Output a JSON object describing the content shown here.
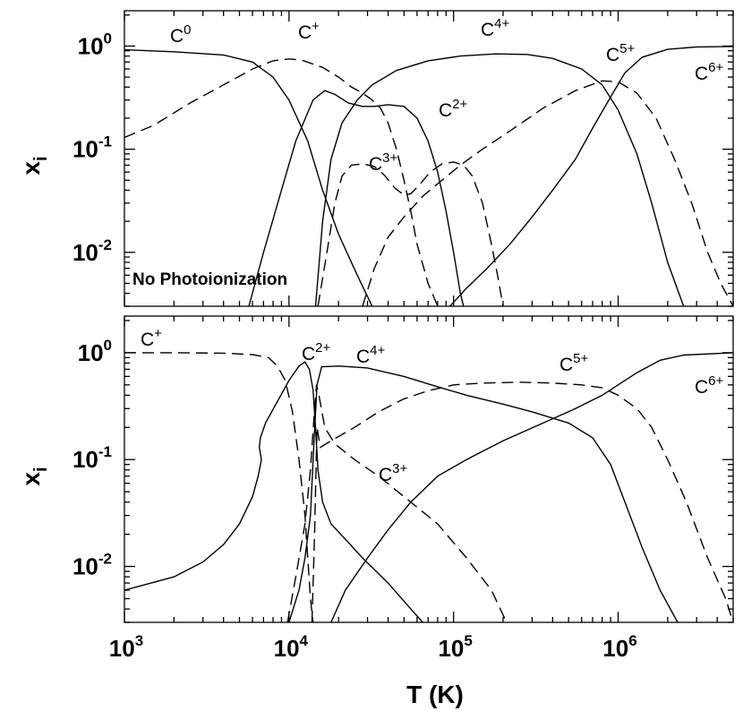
{
  "chart_data": [
    {
      "type": "line",
      "panel": "top",
      "annotation": "No Photoionization",
      "xlabel": "T  (K)",
      "ylabel": "x_i",
      "xscale": "log",
      "yscale": "log",
      "xlim": [
        1000,
        5000000
      ],
      "ylim": [
        0.003,
        2.2
      ],
      "x_ticks": [
        "10^3",
        "10^4",
        "10^5",
        "10^6"
      ],
      "y_ticks": [
        "10^-2",
        "10^-1",
        "10^0"
      ],
      "series": [
        {
          "name": "C0",
          "label_base": "C",
          "label_sup": "0",
          "style": "solid",
          "points": [
            [
              1000,
              0.92
            ],
            [
              2000,
              0.88
            ],
            [
              4000,
              0.82
            ],
            [
              6000,
              0.7
            ],
            [
              8000,
              0.5
            ],
            [
              10000,
              0.3
            ],
            [
              13000,
              0.12
            ],
            [
              16000,
              0.04
            ],
            [
              20000,
              0.015
            ],
            [
              26000,
              0.006
            ],
            [
              32000,
              0.003
            ]
          ]
        },
        {
          "name": "C+",
          "label_base": "C",
          "label_sup": "+",
          "style": "dashed",
          "points": [
            [
              1000,
              0.13
            ],
            [
              1500,
              0.17
            ],
            [
              2500,
              0.28
            ],
            [
              4000,
              0.42
            ],
            [
              6000,
              0.6
            ],
            [
              8000,
              0.72
            ],
            [
              10000,
              0.75
            ],
            [
              12000,
              0.73
            ],
            [
              16000,
              0.62
            ],
            [
              20000,
              0.5
            ],
            [
              24000,
              0.4
            ],
            [
              28000,
              0.35
            ],
            [
              32000,
              0.3
            ],
            [
              36000,
              0.25
            ],
            [
              40000,
              0.18
            ],
            [
              45000,
              0.1
            ],
            [
              50000,
              0.05
            ],
            [
              55000,
              0.025
            ],
            [
              60000,
              0.012
            ],
            [
              70000,
              0.005
            ],
            [
              80000,
              0.003
            ]
          ]
        },
        {
          "name": "C2+",
          "label_base": "C",
          "label_sup": "2+",
          "style": "solid",
          "points": [
            [
              5700,
              0.003
            ],
            [
              7000,
              0.01
            ],
            [
              9000,
              0.04
            ],
            [
              11000,
              0.12
            ],
            [
              14000,
              0.3
            ],
            [
              16500,
              0.37
            ],
            [
              19000,
              0.34
            ],
            [
              23000,
              0.28
            ],
            [
              28000,
              0.26
            ],
            [
              33000,
              0.26
            ],
            [
              40000,
              0.27
            ],
            [
              50000,
              0.26
            ],
            [
              60000,
              0.2
            ],
            [
              70000,
              0.12
            ],
            [
              80000,
              0.06
            ],
            [
              90000,
              0.025
            ],
            [
              100000,
              0.01
            ],
            [
              110000,
              0.004
            ],
            [
              115000,
              0.003
            ]
          ]
        },
        {
          "name": "C3+",
          "label_base": "C",
          "label_sup": "3+",
          "style": "dashed",
          "points": [
            [
              15000,
              0.003
            ],
            [
              17000,
              0.01
            ],
            [
              19000,
              0.03
            ],
            [
              21000,
              0.055
            ],
            [
              24000,
              0.07
            ],
            [
              28000,
              0.072
            ],
            [
              33000,
              0.068
            ],
            [
              38000,
              0.056
            ],
            [
              44000,
              0.042
            ],
            [
              50000,
              0.036
            ],
            [
              55000,
              0.037
            ],
            [
              62000,
              0.045
            ],
            [
              72000,
              0.06
            ],
            [
              85000,
              0.072
            ],
            [
              100000,
              0.075
            ],
            [
              115000,
              0.07
            ],
            [
              130000,
              0.055
            ],
            [
              150000,
              0.03
            ],
            [
              170000,
              0.012
            ],
            [
              185000,
              0.006
            ],
            [
              200000,
              0.003
            ]
          ]
        },
        {
          "name": "C4+",
          "label_base": "C",
          "label_sup": "4+",
          "style": "solid",
          "points": [
            [
              14500,
              0.003
            ],
            [
              16000,
              0.02
            ],
            [
              18000,
              0.08
            ],
            [
              21000,
              0.18
            ],
            [
              26000,
              0.3
            ],
            [
              32000,
              0.42
            ],
            [
              45000,
              0.58
            ],
            [
              70000,
              0.72
            ],
            [
              110000,
              0.8
            ],
            [
              180000,
              0.84
            ],
            [
              280000,
              0.83
            ],
            [
              400000,
              0.76
            ],
            [
              600000,
              0.6
            ],
            [
              800000,
              0.42
            ],
            [
              1000000,
              0.24
            ],
            [
              1300000,
              0.09
            ],
            [
              1600000,
              0.03
            ],
            [
              2000000,
              0.008
            ],
            [
              2500000,
              0.003
            ]
          ]
        },
        {
          "name": "C5+",
          "label_base": "C",
          "label_sup": "5+",
          "style": "dashed",
          "points": [
            [
              28000,
              0.003
            ],
            [
              33000,
              0.007
            ],
            [
              40000,
              0.014
            ],
            [
              50000,
              0.022
            ],
            [
              65000,
              0.035
            ],
            [
              85000,
              0.05
            ],
            [
              110000,
              0.07
            ],
            [
              150000,
              0.1
            ],
            [
              220000,
              0.15
            ],
            [
              350000,
              0.25
            ],
            [
              550000,
              0.37
            ],
            [
              800000,
              0.46
            ],
            [
              1000000,
              0.45
            ],
            [
              1300000,
              0.35
            ],
            [
              1700000,
              0.2
            ],
            [
              2200000,
              0.08
            ],
            [
              2800000,
              0.03
            ],
            [
              3500000,
              0.01
            ],
            [
              4200000,
              0.005
            ],
            [
              5000000,
              0.003
            ]
          ]
        },
        {
          "name": "C6+",
          "label_base": "C",
          "label_sup": "6+",
          "style": "solid",
          "points": [
            [
              95000,
              0.003
            ],
            [
              120000,
              0.0045
            ],
            [
              160000,
              0.007
            ],
            [
              220000,
              0.012
            ],
            [
              300000,
              0.022
            ],
            [
              400000,
              0.04
            ],
            [
              550000,
              0.08
            ],
            [
              700000,
              0.16
            ],
            [
              900000,
              0.32
            ],
            [
              1100000,
              0.55
            ],
            [
              1400000,
              0.78
            ],
            [
              2000000,
              0.93
            ],
            [
              3000000,
              0.98
            ],
            [
              5000000,
              0.99
            ]
          ]
        }
      ]
    },
    {
      "type": "line",
      "panel": "bottom",
      "xlabel": "T  (K)",
      "ylabel": "x_i",
      "xscale": "log",
      "yscale": "log",
      "xlim": [
        1000,
        5000000
      ],
      "ylim": [
        0.003,
        2.2
      ],
      "x_ticks": [
        "10^3",
        "10^4",
        "10^5",
        "10^6"
      ],
      "y_ticks": [
        "10^-2",
        "10^-1",
        "10^0"
      ],
      "series": [
        {
          "name": "C+",
          "label_base": "C",
          "label_sup": "+",
          "style": "dashed",
          "points": [
            [
              1000,
              1.0
            ],
            [
              2000,
              1.0
            ],
            [
              4000,
              0.99
            ],
            [
              6000,
              0.96
            ],
            [
              7500,
              0.9
            ],
            [
              8500,
              0.75
            ],
            [
              9500,
              0.55
            ],
            [
              10500,
              0.28
            ],
            [
              11500,
              0.1
            ],
            [
              12500,
              0.03
            ],
            [
              13000,
              0.012
            ],
            [
              13500,
              0.005
            ],
            [
              14000,
              0.003
            ]
          ]
        },
        {
          "name": "C2+",
          "label_base": "C",
          "label_sup": "2+",
          "style": "solid",
          "points": [
            [
              1000,
              0.006
            ],
            [
              2000,
              0.008
            ],
            [
              3000,
              0.011
            ],
            [
              4000,
              0.016
            ],
            [
              5000,
              0.025
            ],
            [
              6000,
              0.045
            ],
            [
              6500,
              0.07
            ],
            [
              6800,
              0.1
            ],
            [
              6600,
              0.13
            ],
            [
              6700,
              0.16
            ],
            [
              7200,
              0.22
            ],
            [
              8500,
              0.35
            ],
            [
              10000,
              0.55
            ],
            [
              11500,
              0.75
            ],
            [
              12500,
              0.82
            ],
            [
              13300,
              0.7
            ],
            [
              14000,
              0.45
            ],
            [
              14500,
              0.2
            ],
            [
              15000,
              0.08
            ],
            [
              16000,
              0.04
            ],
            [
              18000,
              0.025
            ],
            [
              22000,
              0.018
            ],
            [
              28000,
              0.012
            ],
            [
              40000,
              0.007
            ],
            [
              55000,
              0.004
            ],
            [
              65000,
              0.003
            ]
          ]
        },
        {
          "name": "C3+",
          "label_base": "C",
          "label_sup": "3+",
          "style": "dashed",
          "points": [
            [
              9800,
              0.003
            ],
            [
              11000,
              0.008
            ],
            [
              12500,
              0.025
            ],
            [
              13500,
              0.08
            ],
            [
              14200,
              0.25
            ],
            [
              14700,
              0.5
            ],
            [
              15200,
              0.4
            ],
            [
              16500,
              0.2
            ],
            [
              19000,
              0.14
            ],
            [
              25000,
              0.1
            ],
            [
              35000,
              0.07
            ],
            [
              50000,
              0.045
            ],
            [
              80000,
              0.025
            ],
            [
              120000,
              0.012
            ],
            [
              170000,
              0.006
            ],
            [
              210000,
              0.003
            ]
          ]
        },
        {
          "name": "C4+",
          "label_base": "C",
          "label_sup": "4+",
          "style": "solid",
          "points": [
            [
              10000,
              0.003
            ],
            [
              11500,
              0.006
            ],
            [
              12500,
              0.012
            ],
            [
              13500,
              0.03
            ],
            [
              14200,
              0.15
            ],
            [
              14800,
              0.5
            ],
            [
              15800,
              0.74
            ],
            [
              20000,
              0.75
            ],
            [
              30000,
              0.72
            ],
            [
              50000,
              0.6
            ],
            [
              80000,
              0.48
            ],
            [
              120000,
              0.4
            ],
            [
              200000,
              0.33
            ],
            [
              300000,
              0.28
            ],
            [
              500000,
              0.22
            ],
            [
              700000,
              0.16
            ],
            [
              900000,
              0.09
            ],
            [
              1100000,
              0.04
            ],
            [
              1400000,
              0.015
            ],
            [
              1800000,
              0.006
            ],
            [
              2300000,
              0.003
            ]
          ]
        },
        {
          "name": "C5+",
          "label_base": "C",
          "label_sup": "5+",
          "style": "dashed",
          "points": [
            [
              13800,
              0.003
            ],
            [
              14300,
              0.02
            ],
            [
              14800,
              0.2
            ],
            [
              15500,
              0.13
            ],
            [
              18000,
              0.15
            ],
            [
              25000,
              0.2
            ],
            [
              35000,
              0.28
            ],
            [
              50000,
              0.37
            ],
            [
              70000,
              0.44
            ],
            [
              100000,
              0.5
            ],
            [
              150000,
              0.52
            ],
            [
              250000,
              0.53
            ],
            [
              400000,
              0.52
            ],
            [
              600000,
              0.5
            ],
            [
              800000,
              0.47
            ],
            [
              1000000,
              0.4
            ],
            [
              1300000,
              0.3
            ],
            [
              1600000,
              0.2
            ],
            [
              2000000,
              0.1
            ],
            [
              2600000,
              0.04
            ],
            [
              3500000,
              0.012
            ],
            [
              4500000,
              0.005
            ],
            [
              5000000,
              0.003
            ]
          ]
        },
        {
          "name": "C6+",
          "label_base": "C",
          "label_sup": "6+",
          "style": "solid",
          "points": [
            [
              18000,
              0.003
            ],
            [
              22000,
              0.006
            ],
            [
              30000,
              0.012
            ],
            [
              40000,
              0.022
            ],
            [
              55000,
              0.04
            ],
            [
              80000,
              0.07
            ],
            [
              120000,
              0.1
            ],
            [
              200000,
              0.15
            ],
            [
              350000,
              0.22
            ],
            [
              550000,
              0.3
            ],
            [
              800000,
              0.4
            ],
            [
              1000000,
              0.5
            ],
            [
              1300000,
              0.65
            ],
            [
              1800000,
              0.85
            ],
            [
              2500000,
              0.95
            ],
            [
              5000000,
              1.0
            ]
          ]
        }
      ]
    }
  ]
}
